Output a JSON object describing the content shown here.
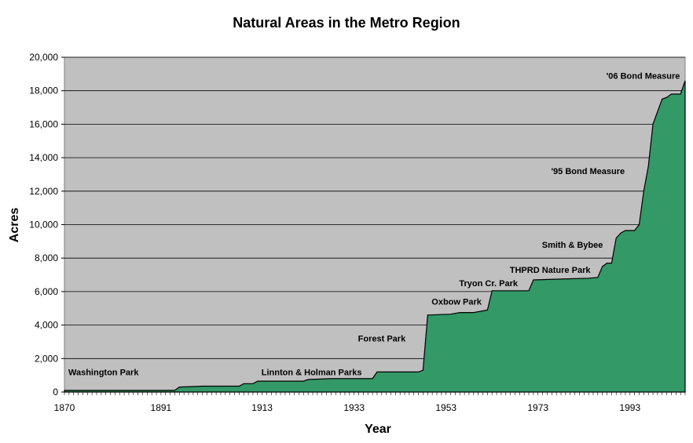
{
  "chart_data": {
    "type": "area",
    "title": "Natural Areas in the Metro Region",
    "xlabel": "Year",
    "ylabel": "Acres",
    "xlim": [
      1870,
      2005
    ],
    "ylim": [
      0,
      20000
    ],
    "x_ticks": [
      "1870",
      "1891",
      "1913",
      "1933",
      "1953",
      "1973",
      "1993"
    ],
    "x_tick_values": [
      1870,
      1891,
      1913,
      1933,
      1953,
      1973,
      1993
    ],
    "y_ticks": [
      "0",
      "2,000",
      "4,000",
      "6,000",
      "8,000",
      "10,000",
      "12,000",
      "14,000",
      "16,000",
      "18,000",
      "20,000"
    ],
    "y_tick_values": [
      0,
      2000,
      4000,
      6000,
      8000,
      10000,
      12000,
      14000,
      16000,
      18000,
      20000
    ],
    "grid": true,
    "colors": {
      "fill": "#339966",
      "plot_bg": "#c0c0c0",
      "line": "#000000"
    },
    "series": [
      {
        "name": "Acres",
        "x": [
          1870,
          1894,
          1895,
          1900,
          1908,
          1909,
          1911,
          1912,
          1922,
          1923,
          1928,
          1937,
          1938,
          1947,
          1948,
          1949,
          1954,
          1956,
          1959,
          1961,
          1962,
          1963,
          1971,
          1972,
          1978,
          1984,
          1986,
          1987,
          1988,
          1989,
          1990,
          1991,
          1992,
          1994,
          1995,
          1996,
          1997,
          1998,
          2000,
          2001,
          2002,
          2004,
          2005
        ],
        "values": [
          100,
          100,
          300,
          350,
          350,
          500,
          500,
          650,
          650,
          750,
          800,
          800,
          1200,
          1200,
          1300,
          4600,
          4650,
          4750,
          4750,
          4850,
          4900,
          6050,
          6050,
          6700,
          6750,
          6800,
          6850,
          7500,
          7700,
          7700,
          9200,
          9500,
          9650,
          9650,
          10000,
          12000,
          13500,
          16000,
          17500,
          17600,
          17800,
          17800,
          18600
        ]
      }
    ],
    "annotations": [
      {
        "text": "Washington Park",
        "year": 1870,
        "acres": 1200
      },
      {
        "text": "Linnton & Holman Parks",
        "year": 1912,
        "acres": 1200
      },
      {
        "text": "Forest Park",
        "year": 1933,
        "acres": 3200
      },
      {
        "text": "Oxbow Park",
        "year": 1949,
        "acres": 5400
      },
      {
        "text": "Tryon Cr. Park",
        "year": 1955,
        "acres": 6500
      },
      {
        "text": "THPRD Nature Park",
        "year": 1966,
        "acres": 7300
      },
      {
        "text": "Smith & Bybee",
        "year": 1973,
        "acres": 8800
      },
      {
        "text": "'95 Bond Measure",
        "year": 1975,
        "acres": 13200
      },
      {
        "text": "'06 Bond Measure",
        "year": 1987,
        "acres": 18900
      }
    ]
  }
}
